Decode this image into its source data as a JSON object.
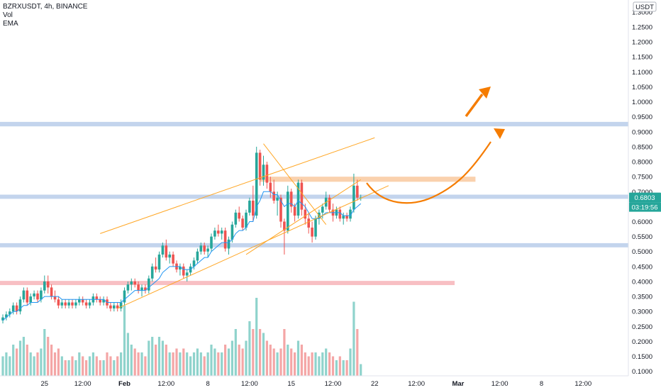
{
  "header": {
    "symbol_line": "BZRXUSDT, 4h, BINANCE",
    "indicators": [
      "Vol",
      "EMA"
    ]
  },
  "price_axis": {
    "currency_label": "USDT",
    "last_price_label": "0.6803",
    "countdown_label": "03:19:56"
  },
  "colors": {
    "up": "#26a69a",
    "down": "#ef5350",
    "vol_up": "#8fd3cc",
    "vol_down": "#f4a6a6",
    "ema": "#2196f3",
    "channel": "#ffa726",
    "arrow": "#f57c00",
    "support_zone": "#b8cdea",
    "red_zone": "#f7b4b8",
    "orange_zone": "#f9c99f",
    "badge_last": "#26a69a"
  },
  "chart_data": {
    "type": "candlestick",
    "symbol": "BZRXUSDT",
    "timeframe": "4h",
    "exchange": "BINANCE",
    "y_range": [
      0.085,
      1.34
    ],
    "y_ticks": [
      1.3,
      1.25,
      1.2,
      1.15,
      1.1,
      1.05,
      1.0,
      0.95,
      0.9,
      0.85,
      0.8,
      0.75,
      0.7,
      0.65,
      0.6,
      0.55,
      0.5,
      0.45,
      0.4,
      0.35,
      0.3,
      0.25,
      0.2,
      0.15,
      0.1
    ],
    "y_tick_labels": [
      "1.3000",
      "1.2500",
      "1.2000",
      "1.1500",
      "1.1000",
      "1.0500",
      "1.0000",
      "0.9500",
      "0.9000",
      "0.8500",
      "0.8000",
      "0.7500",
      "0.7000",
      "0.6500",
      "0.6000",
      "0.5500",
      "0.5000",
      "0.4500",
      "0.4000",
      "0.3500",
      "0.3000",
      "0.2500",
      "0.2000",
      "0.1500",
      "0.1000"
    ],
    "x_ticks": [
      {
        "label": "25",
        "bar": 12
      },
      {
        "label": "12:00",
        "bar": 23
      },
      {
        "label": "Feb",
        "bar": 35,
        "bold": true
      },
      {
        "label": "12:00",
        "bar": 47
      },
      {
        "label": "8",
        "bar": 59
      },
      {
        "label": "12:00",
        "bar": 71
      },
      {
        "label": "15",
        "bar": 83
      },
      {
        "label": "12:00",
        "bar": 95
      },
      {
        "label": "22",
        "bar": 107
      },
      {
        "label": "12:00",
        "bar": 119
      },
      {
        "label": "Mar",
        "bar": 131,
        "bold": true
      },
      {
        "label": "12:00",
        "bar": 143
      },
      {
        "label": "8",
        "bar": 155
      },
      {
        "label": "12:00",
        "bar": 167
      }
    ],
    "last_price": 0.6803,
    "volume_max": 1.0,
    "candles": [
      [
        0.27,
        0.29,
        0.26,
        0.28,
        0.25
      ],
      [
        0.28,
        0.3,
        0.27,
        0.29,
        0.3
      ],
      [
        0.29,
        0.31,
        0.28,
        0.3,
        0.25
      ],
      [
        0.3,
        0.33,
        0.29,
        0.32,
        0.4
      ],
      [
        0.32,
        0.33,
        0.29,
        0.3,
        0.35
      ],
      [
        0.3,
        0.35,
        0.29,
        0.34,
        0.45
      ],
      [
        0.34,
        0.38,
        0.33,
        0.37,
        0.5
      ],
      [
        0.37,
        0.38,
        0.32,
        0.33,
        0.4
      ],
      [
        0.33,
        0.36,
        0.32,
        0.35,
        0.3
      ],
      [
        0.35,
        0.37,
        0.34,
        0.36,
        0.25
      ],
      [
        0.36,
        0.37,
        0.33,
        0.34,
        0.3
      ],
      [
        0.34,
        0.38,
        0.33,
        0.37,
        0.35
      ],
      [
        0.37,
        0.42,
        0.36,
        0.4,
        0.6
      ],
      [
        0.4,
        0.42,
        0.36,
        0.38,
        0.5
      ],
      [
        0.38,
        0.39,
        0.34,
        0.35,
        0.4
      ],
      [
        0.35,
        0.37,
        0.33,
        0.34,
        0.3
      ],
      [
        0.34,
        0.35,
        0.31,
        0.32,
        0.35
      ],
      [
        0.32,
        0.34,
        0.31,
        0.33,
        0.25
      ],
      [
        0.33,
        0.34,
        0.31,
        0.32,
        0.2
      ],
      [
        0.32,
        0.34,
        0.31,
        0.33,
        0.2
      ],
      [
        0.33,
        0.34,
        0.31,
        0.32,
        0.25
      ],
      [
        0.32,
        0.34,
        0.31,
        0.33,
        0.2
      ],
      [
        0.33,
        0.35,
        0.32,
        0.34,
        0.3
      ],
      [
        0.34,
        0.35,
        0.32,
        0.33,
        0.25
      ],
      [
        0.33,
        0.34,
        0.31,
        0.32,
        0.2
      ],
      [
        0.32,
        0.34,
        0.31,
        0.33,
        0.25
      ],
      [
        0.33,
        0.36,
        0.32,
        0.35,
        0.3
      ],
      [
        0.35,
        0.36,
        0.33,
        0.34,
        0.25
      ],
      [
        0.34,
        0.35,
        0.32,
        0.33,
        0.2
      ],
      [
        0.33,
        0.35,
        0.32,
        0.34,
        0.2
      ],
      [
        0.34,
        0.35,
        0.31,
        0.32,
        0.3
      ],
      [
        0.32,
        0.33,
        0.3,
        0.31,
        0.25
      ],
      [
        0.31,
        0.33,
        0.3,
        0.32,
        0.2
      ],
      [
        0.32,
        0.33,
        0.3,
        0.31,
        0.25
      ],
      [
        0.31,
        0.34,
        0.3,
        0.33,
        0.3
      ],
      [
        0.33,
        0.38,
        0.32,
        0.37,
        0.9
      ],
      [
        0.37,
        0.4,
        0.36,
        0.39,
        0.55
      ],
      [
        0.39,
        0.41,
        0.37,
        0.4,
        0.4
      ],
      [
        0.4,
        0.41,
        0.38,
        0.39,
        0.35
      ],
      [
        0.39,
        0.4,
        0.36,
        0.37,
        0.3
      ],
      [
        0.37,
        0.39,
        0.35,
        0.38,
        0.3
      ],
      [
        0.38,
        0.39,
        0.36,
        0.37,
        0.25
      ],
      [
        0.37,
        0.42,
        0.36,
        0.41,
        0.45
      ],
      [
        0.41,
        0.46,
        0.4,
        0.45,
        0.5
      ],
      [
        0.45,
        0.48,
        0.43,
        0.44,
        0.4
      ],
      [
        0.44,
        0.5,
        0.43,
        0.49,
        0.5
      ],
      [
        0.49,
        0.53,
        0.48,
        0.52,
        0.45
      ],
      [
        0.52,
        0.54,
        0.47,
        0.48,
        0.4
      ],
      [
        0.48,
        0.5,
        0.46,
        0.49,
        0.3
      ],
      [
        0.49,
        0.5,
        0.45,
        0.46,
        0.3
      ],
      [
        0.46,
        0.47,
        0.43,
        0.44,
        0.35
      ],
      [
        0.44,
        0.46,
        0.42,
        0.45,
        0.3
      ],
      [
        0.45,
        0.46,
        0.41,
        0.42,
        0.35
      ],
      [
        0.42,
        0.44,
        0.4,
        0.43,
        0.3
      ],
      [
        0.43,
        0.46,
        0.42,
        0.45,
        0.25
      ],
      [
        0.45,
        0.48,
        0.44,
        0.47,
        0.3
      ],
      [
        0.47,
        0.51,
        0.46,
        0.5,
        0.35
      ],
      [
        0.5,
        0.53,
        0.49,
        0.52,
        0.3
      ],
      [
        0.52,
        0.53,
        0.49,
        0.5,
        0.25
      ],
      [
        0.5,
        0.52,
        0.48,
        0.51,
        0.3
      ],
      [
        0.51,
        0.56,
        0.5,
        0.55,
        0.4
      ],
      [
        0.55,
        0.58,
        0.54,
        0.57,
        0.35
      ],
      [
        0.57,
        0.59,
        0.55,
        0.56,
        0.3
      ],
      [
        0.56,
        0.58,
        0.54,
        0.57,
        0.3
      ],
      [
        0.57,
        0.58,
        0.5,
        0.51,
        0.4
      ],
      [
        0.51,
        0.55,
        0.49,
        0.54,
        0.35
      ],
      [
        0.54,
        0.6,
        0.53,
        0.59,
        0.45
      ],
      [
        0.59,
        0.64,
        0.58,
        0.63,
        0.6
      ],
      [
        0.63,
        0.65,
        0.6,
        0.61,
        0.4
      ],
      [
        0.61,
        0.62,
        0.57,
        0.58,
        0.35
      ],
      [
        0.58,
        0.64,
        0.57,
        0.63,
        0.45
      ],
      [
        0.63,
        0.68,
        0.62,
        0.67,
        0.7
      ],
      [
        0.67,
        0.72,
        0.6,
        0.62,
        0.6
      ],
      [
        0.62,
        0.85,
        0.61,
        0.83,
        1.0
      ],
      [
        0.83,
        0.84,
        0.72,
        0.74,
        0.6
      ],
      [
        0.74,
        0.82,
        0.72,
        0.79,
        0.55
      ],
      [
        0.79,
        0.8,
        0.71,
        0.73,
        0.45
      ],
      [
        0.73,
        0.75,
        0.68,
        0.7,
        0.4
      ],
      [
        0.7,
        0.74,
        0.66,
        0.67,
        0.35
      ],
      [
        0.67,
        0.7,
        0.62,
        0.68,
        0.3
      ],
      [
        0.68,
        0.69,
        0.58,
        0.6,
        0.35
      ],
      [
        0.6,
        0.61,
        0.49,
        0.57,
        0.6
      ],
      [
        0.57,
        0.72,
        0.56,
        0.7,
        0.4
      ],
      [
        0.7,
        0.71,
        0.63,
        0.65,
        0.35
      ],
      [
        0.65,
        0.66,
        0.6,
        0.62,
        0.3
      ],
      [
        0.62,
        0.74,
        0.61,
        0.73,
        0.45
      ],
      [
        0.73,
        0.74,
        0.62,
        0.64,
        0.4
      ],
      [
        0.64,
        0.66,
        0.59,
        0.61,
        0.3
      ],
      [
        0.61,
        0.63,
        0.56,
        0.58,
        0.25
      ],
      [
        0.58,
        0.6,
        0.53,
        0.55,
        0.3
      ],
      [
        0.55,
        0.62,
        0.54,
        0.61,
        0.3
      ],
      [
        0.61,
        0.64,
        0.59,
        0.63,
        0.25
      ],
      [
        0.63,
        0.66,
        0.61,
        0.65,
        0.3
      ],
      [
        0.65,
        0.7,
        0.64,
        0.68,
        0.35
      ],
      [
        0.68,
        0.69,
        0.63,
        0.64,
        0.3
      ],
      [
        0.64,
        0.66,
        0.6,
        0.62,
        0.25
      ],
      [
        0.62,
        0.65,
        0.61,
        0.64,
        0.2
      ],
      [
        0.64,
        0.65,
        0.6,
        0.61,
        0.25
      ],
      [
        0.61,
        0.63,
        0.59,
        0.62,
        0.2
      ],
      [
        0.62,
        0.63,
        0.6,
        0.61,
        0.2
      ],
      [
        0.61,
        0.65,
        0.6,
        0.64,
        0.35
      ],
      [
        0.64,
        0.76,
        0.63,
        0.72,
        0.95
      ],
      [
        0.72,
        0.74,
        0.67,
        0.68,
        0.6
      ],
      [
        0.68,
        0.69,
        0.67,
        0.6803,
        0.15
      ]
    ],
    "ema_values": [
      0.27,
      0.28,
      0.29,
      0.3,
      0.3,
      0.31,
      0.32,
      0.32,
      0.33,
      0.33,
      0.33,
      0.34,
      0.35,
      0.35,
      0.35,
      0.35,
      0.35,
      0.34,
      0.34,
      0.34,
      0.34,
      0.34,
      0.34,
      0.34,
      0.34,
      0.34,
      0.34,
      0.34,
      0.34,
      0.34,
      0.33,
      0.33,
      0.33,
      0.33,
      0.33,
      0.34,
      0.35,
      0.36,
      0.37,
      0.37,
      0.37,
      0.37,
      0.38,
      0.39,
      0.4,
      0.41,
      0.43,
      0.44,
      0.45,
      0.45,
      0.45,
      0.45,
      0.44,
      0.44,
      0.44,
      0.45,
      0.46,
      0.47,
      0.48,
      0.48,
      0.5,
      0.51,
      0.52,
      0.53,
      0.53,
      0.53,
      0.54,
      0.56,
      0.57,
      0.57,
      0.58,
      0.6,
      0.6,
      0.65,
      0.67,
      0.7,
      0.7,
      0.7,
      0.69,
      0.69,
      0.67,
      0.65,
      0.66,
      0.66,
      0.65,
      0.67,
      0.66,
      0.65,
      0.63,
      0.61,
      0.61,
      0.61,
      0.62,
      0.63,
      0.63,
      0.63,
      0.63,
      0.63,
      0.62,
      0.62,
      0.62,
      0.64,
      0.65,
      0.66
    ],
    "horizontal_zones": [
      {
        "name": "resistance-zone",
        "y": [
          0.918,
          0.933
        ],
        "color_key": "support_zone",
        "bar_to": null
      },
      {
        "name": "last-price-zone",
        "y": [
          0.676,
          0.69
        ],
        "color_key": "support_zone",
        "bar_to": null
      },
      {
        "name": "support-zone",
        "y": [
          0.514,
          0.528
        ],
        "color_key": "support_zone",
        "bar_to": null
      },
      {
        "name": "demand-zone",
        "y": [
          0.388,
          0.402
        ],
        "color_key": "red_zone",
        "bar_to": 130
      },
      {
        "name": "breakout-zone",
        "y": [
          0.733,
          0.75
        ],
        "color_key": "orange_zone",
        "bar_from": 74,
        "bar_to": 136
      }
    ],
    "trend_lines": [
      {
        "name": "channel-upper",
        "from": [
          28,
          0.56
        ],
        "to": [
          107,
          0.88
        ]
      },
      {
        "name": "channel-lower",
        "from": [
          33,
          0.31
        ],
        "to": [
          111,
          0.72
        ]
      },
      {
        "name": "triangle-top",
        "from": [
          75,
          0.86
        ],
        "to": [
          93,
          0.59
        ]
      },
      {
        "name": "triangle-bottom",
        "from": [
          70,
          0.49
        ],
        "to": [
          103,
          0.74
        ]
      }
    ]
  }
}
